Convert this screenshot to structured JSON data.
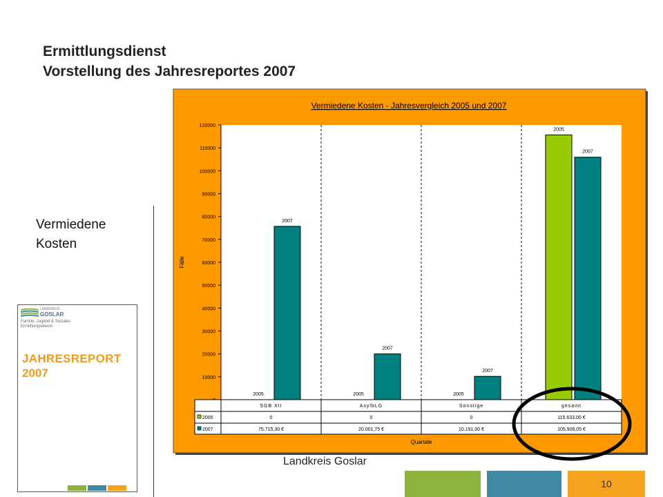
{
  "slide": {
    "title_line1": "Ermittlungsdienst",
    "title_line2": "Vorstellung des Jahresreportes 2007",
    "side_label_line1": "Vermiedene",
    "side_label_line2": "Kosten",
    "footer": "Landkreis Goslar",
    "page_number": "10"
  },
  "report_cover": {
    "logo_top": "LANDKREIS",
    "logo_name": "GOSLAR",
    "logo_sub1": "Familie, Jugend & Soziales",
    "logo_sub2": "Ermittlungsdienst",
    "title_line1": "JAHRESREPORT",
    "title_line2": "2007"
  },
  "colors": {
    "chart_background": "#fe9900",
    "series_2005": "#99cc00",
    "series_2007": "#008080",
    "footer_green": "#8db23e",
    "footer_blue": "#3f8aa2",
    "footer_orange": "#f5a21f",
    "highlight_circle": "#000000"
  },
  "chart_data": {
    "type": "bar",
    "title": "Vermiedene Kosten - Jahresvergleich 2005 und 2007",
    "xlabel": "Quartale",
    "ylabel": "Fälle",
    "ylim": [
      0,
      120000
    ],
    "yticks": [
      "0",
      "10000",
      "20000",
      "30000",
      "40000",
      "50000",
      "60000",
      "70000",
      "80000",
      "90000",
      "100000",
      "110000",
      "120000"
    ],
    "categories": [
      "SGB XII",
      "AsylbLG",
      "Sonstige",
      "gesamt"
    ],
    "series": [
      {
        "name": "2005",
        "values": [
          0,
          0,
          0,
          115633
        ],
        "table_values": [
          "0",
          "0",
          "0",
          "115.633,00 €"
        ],
        "bar_labels": [
          "2005",
          "2005",
          "2005",
          "2005"
        ]
      },
      {
        "name": "2007",
        "values": [
          75715.3,
          20001.75,
          10191.0,
          105908.05
        ],
        "table_values": [
          "75.715,30 €",
          "20.001,75 €",
          "10.191,00 €",
          "105.908,05 €"
        ],
        "bar_labels": [
          "2007",
          "2007",
          "2007",
          "2007"
        ]
      }
    ],
    "grid": "vertical dashed separators between categories",
    "legend": "data table below plot",
    "annotation": "circle around gesamt"
  }
}
